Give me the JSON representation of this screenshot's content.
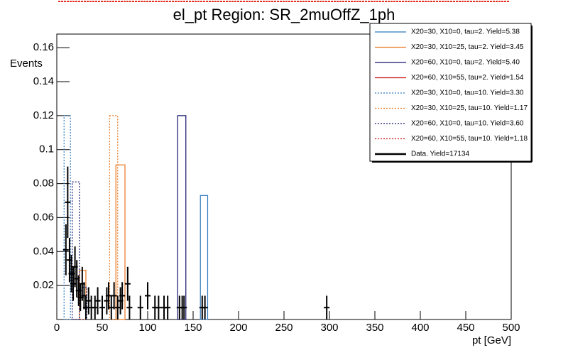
{
  "chart_data": {
    "type": "step",
    "title": "el_pt Region: SR_2muOffZ_1ph",
    "xlabel": "pt [GeV]",
    "ylabel": "Events",
    "xlim": [
      0,
      500
    ],
    "ylim": [
      0,
      0.168
    ],
    "xticks": [
      0,
      50,
      100,
      150,
      200,
      250,
      300,
      350,
      400,
      450,
      500
    ],
    "yticks": [
      0.02,
      0.04,
      0.06,
      0.08,
      0.1,
      0.12,
      0.14,
      0.16
    ],
    "legend": "upper right",
    "series": [
      {
        "name": "X20=30, X10=0, tau=2. Yield=5.38",
        "color": "#2f7bbf",
        "style": "solid",
        "bins": [
          158,
          166
        ],
        "values": [
          0.073
        ]
      },
      {
        "name": "X20=30, X10=25, tau=2. Yield=3.45",
        "color": "#e8761e",
        "style": "solid",
        "bins": [
          25,
          32,
          65,
          75
        ],
        "values": [
          0.029,
          0,
          0.091
        ]
      },
      {
        "name": "X20=60, X10=0, tau=2. Yield=5.40",
        "color": "#14146e",
        "style": "solid",
        "bins": [
          133,
          142
        ],
        "values": [
          0.12
        ]
      },
      {
        "name": "X20=60, X10=55, tau=2. Yield=1.54",
        "color": "#c81010",
        "style": "solid",
        "bins": [],
        "values": []
      },
      {
        "name": "X20=30, X10=0, tau=10. Yield=3.30",
        "color": "#2f7bbf",
        "style": "dotted",
        "bins": [
          8,
          15
        ],
        "values": [
          0.12
        ]
      },
      {
        "name": "X20=30, X10=25, tau=10. Yield=1.17",
        "color": "#e8761e",
        "style": "dotted",
        "bins": [
          58,
          67
        ],
        "values": [
          0.12
        ]
      },
      {
        "name": "X20=60, X10=0, tau=10. Yield=3.60",
        "color": "#14146e",
        "style": "dotted",
        "bins": [
          17,
          25,
          33
        ],
        "values": [
          0.081,
          0.019
        ]
      },
      {
        "name": "X20=60, X10=55, tau=10. Yield=1.18",
        "color": "#c81010",
        "style": "dotted",
        "bins": [],
        "values": []
      }
    ],
    "data": {
      "name": "Data. Yield=17134",
      "color": "#000000",
      "x": [
        10,
        12,
        14,
        16,
        18,
        20,
        22,
        24,
        26,
        28,
        30,
        32,
        35,
        38,
        42,
        45,
        50,
        55,
        57,
        60,
        63,
        67,
        70,
        72,
        78,
        80,
        92,
        100,
        108,
        112,
        118,
        122,
        135,
        138,
        140,
        160,
        163,
        297
      ],
      "values": [
        0.041,
        0.069,
        0.035,
        0.027,
        0.021,
        0.031,
        0.024,
        0.017,
        0.013,
        0.021,
        0.014,
        0.007,
        0.011,
        0.007,
        0.007,
        0.011,
        0.007,
        0.011,
        0.014,
        0.007,
        0.014,
        0.007,
        0.011,
        0.014,
        0.021,
        0.007,
        0.007,
        0.014,
        0.007,
        0.007,
        0.007,
        0.007,
        0.007,
        0.007,
        0.007,
        0.007,
        0.007,
        0.007
      ],
      "errors": [
        0.015,
        0.021,
        0.013,
        0.011,
        0.01,
        0.012,
        0.011,
        0.009,
        0.008,
        0.01,
        0.008,
        0.007,
        0.008,
        0.007,
        0.007,
        0.008,
        0.007,
        0.008,
        0.008,
        0.007,
        0.008,
        0.007,
        0.008,
        0.008,
        0.01,
        0.007,
        0.007,
        0.008,
        0.007,
        0.007,
        0.007,
        0.007,
        0.007,
        0.007,
        0.007,
        0.007,
        0.007,
        0.007
      ]
    }
  }
}
